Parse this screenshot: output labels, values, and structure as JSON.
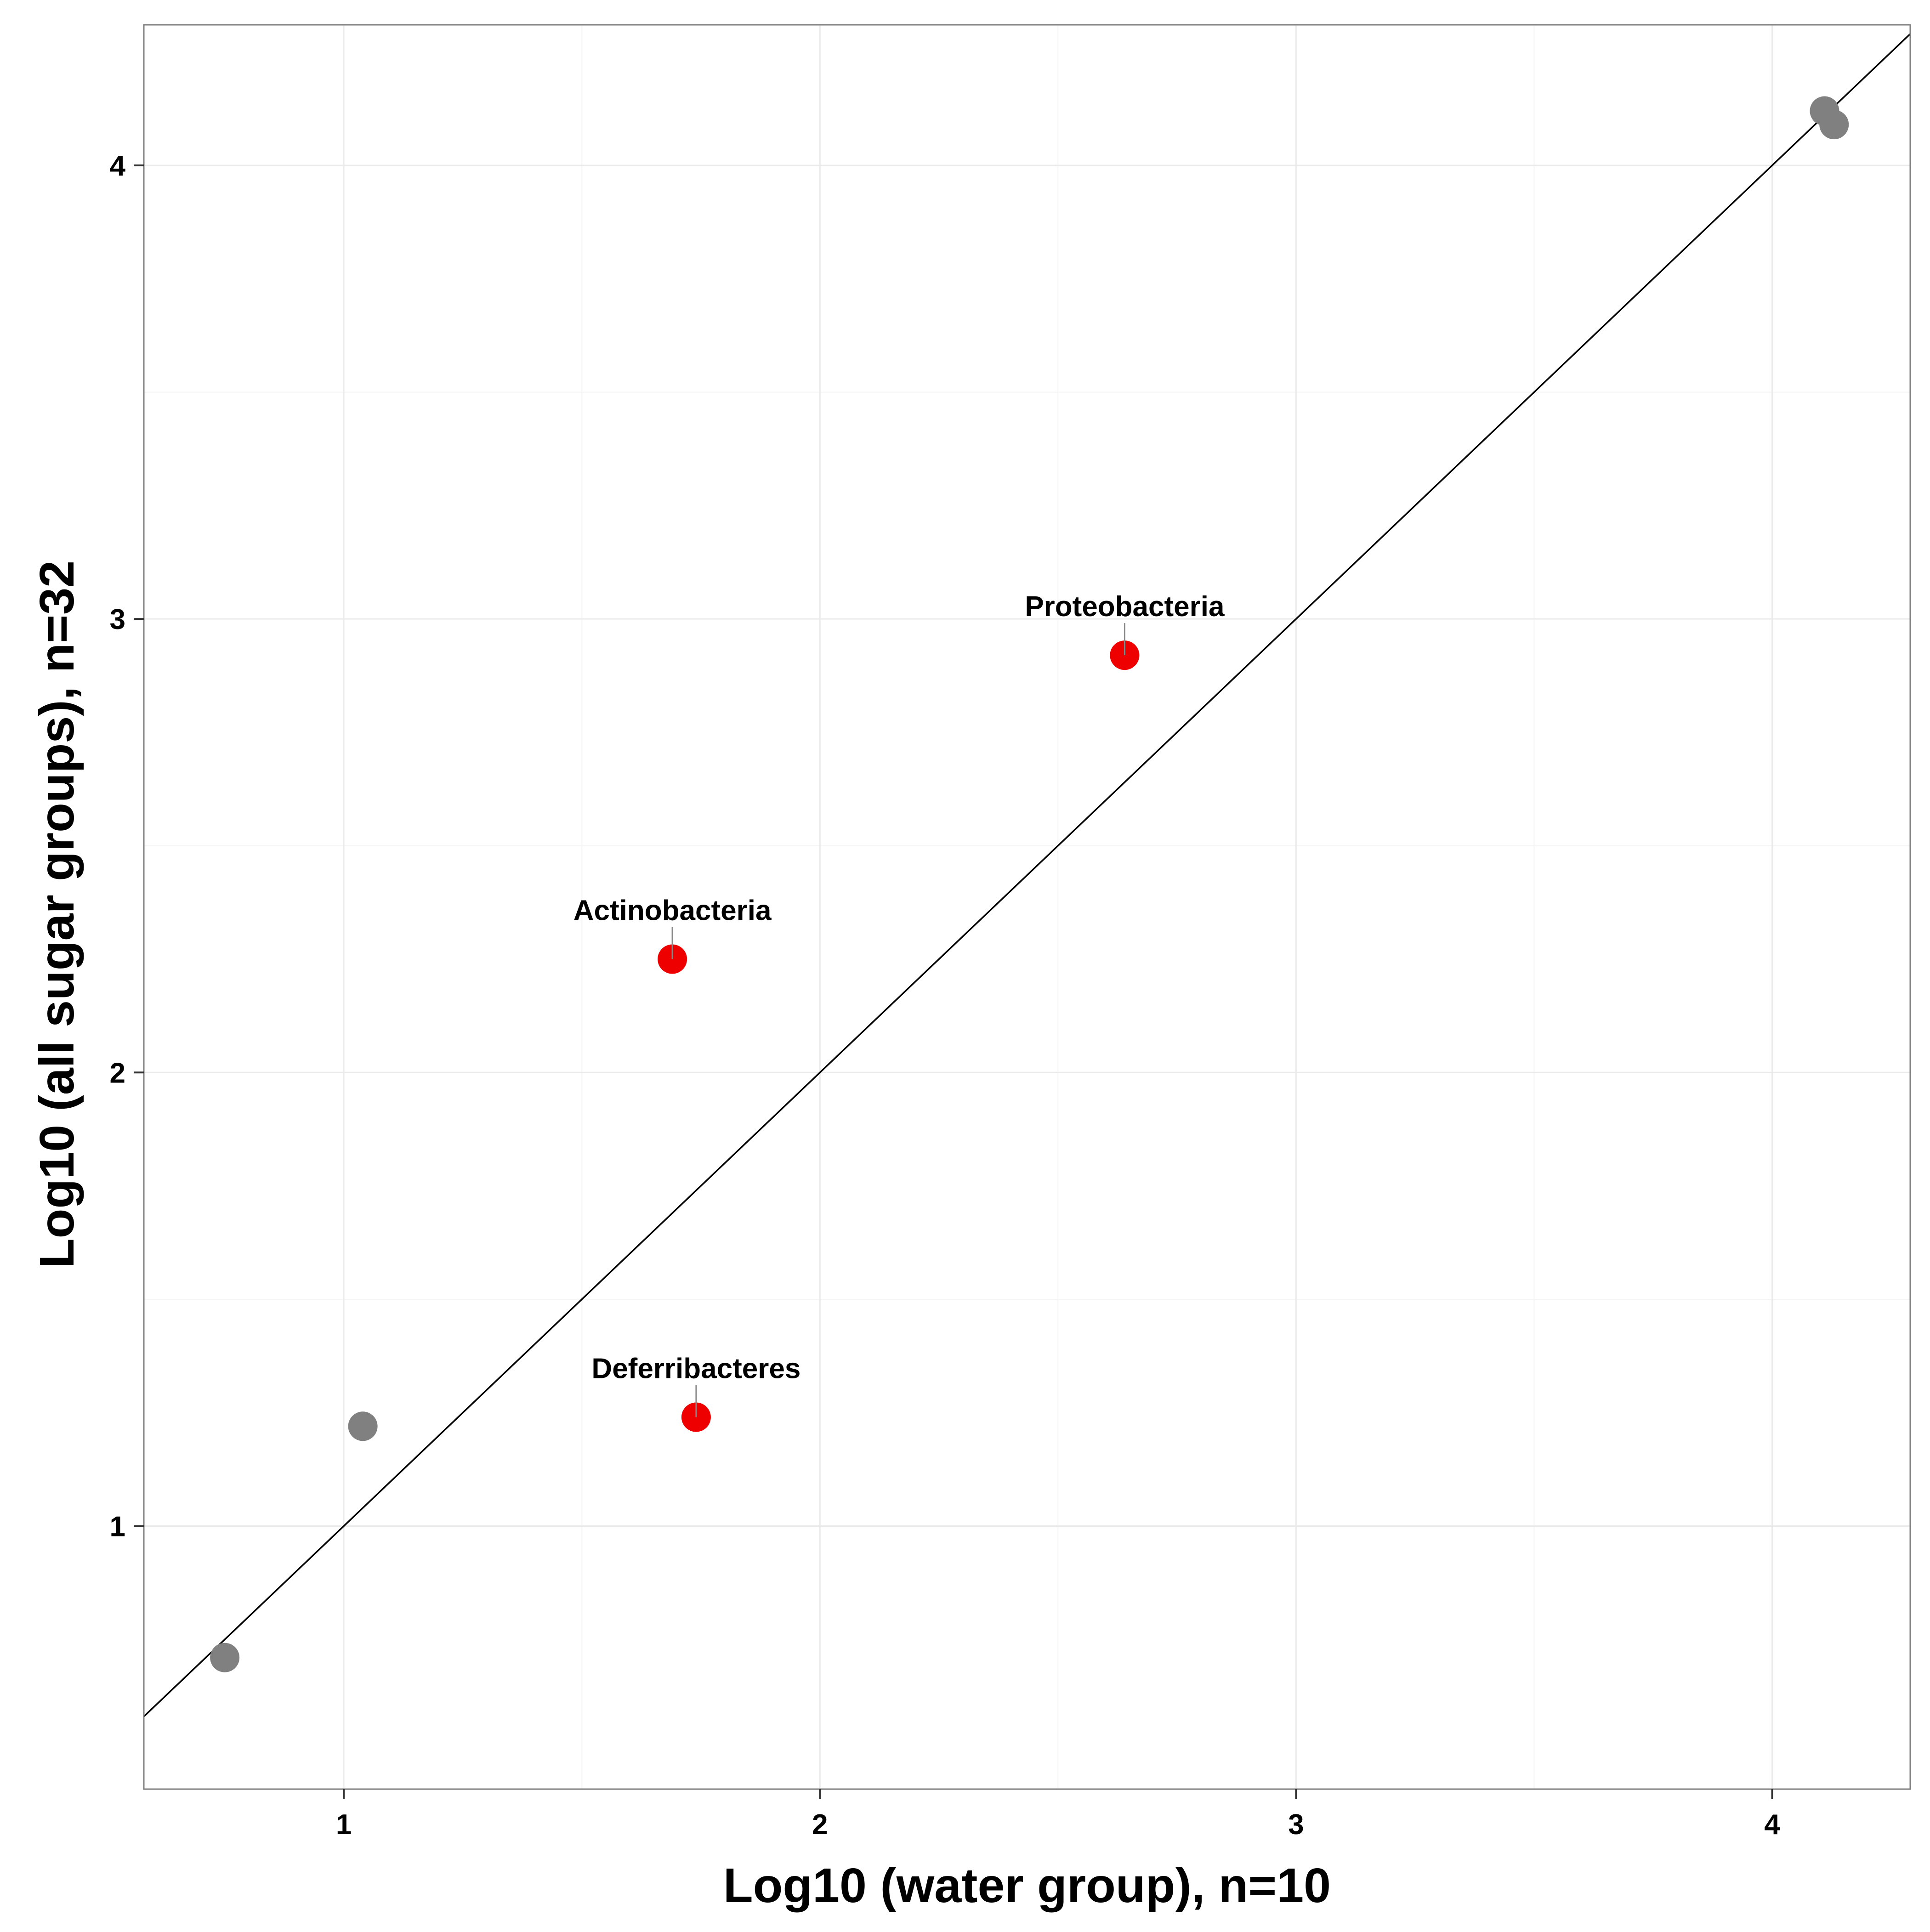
{
  "chart_data": {
    "type": "scatter",
    "title": "",
    "xlabel": "Log10 (water group), n=10",
    "ylabel": "Log10 (all sugar groups), n=32",
    "xlim": [
      0.58,
      4.29
    ],
    "ylim": [
      0.42,
      4.31
    ],
    "x_ticks": [
      1,
      2,
      3,
      4
    ],
    "y_ticks": [
      1,
      2,
      3,
      4
    ],
    "x_tick_labels": [
      "1",
      "2",
      "3",
      "4"
    ],
    "y_tick_labels": [
      "1",
      "2",
      "3",
      "4"
    ],
    "grid": true,
    "legend": "none",
    "reference_line": {
      "slope": 1,
      "intercept": 0
    },
    "colors": {
      "highlight": "#ee0000",
      "normal": "#808080",
      "grid": "#ebebeb",
      "line": "#000000"
    },
    "points": [
      {
        "x": 0.75,
        "y": 0.71,
        "label": "",
        "highlight": false
      },
      {
        "x": 1.04,
        "y": 1.22,
        "label": "",
        "highlight": false
      },
      {
        "x": 1.69,
        "y": 2.25,
        "label": "Actinobacteria",
        "highlight": true
      },
      {
        "x": 1.74,
        "y": 1.24,
        "label": "Deferribacteres",
        "highlight": true
      },
      {
        "x": 2.64,
        "y": 2.92,
        "label": "Proteobacteria",
        "highlight": true
      },
      {
        "x": 4.11,
        "y": 4.12,
        "label": "",
        "highlight": false
      },
      {
        "x": 4.13,
        "y": 4.09,
        "label": "",
        "highlight": false
      }
    ]
  }
}
